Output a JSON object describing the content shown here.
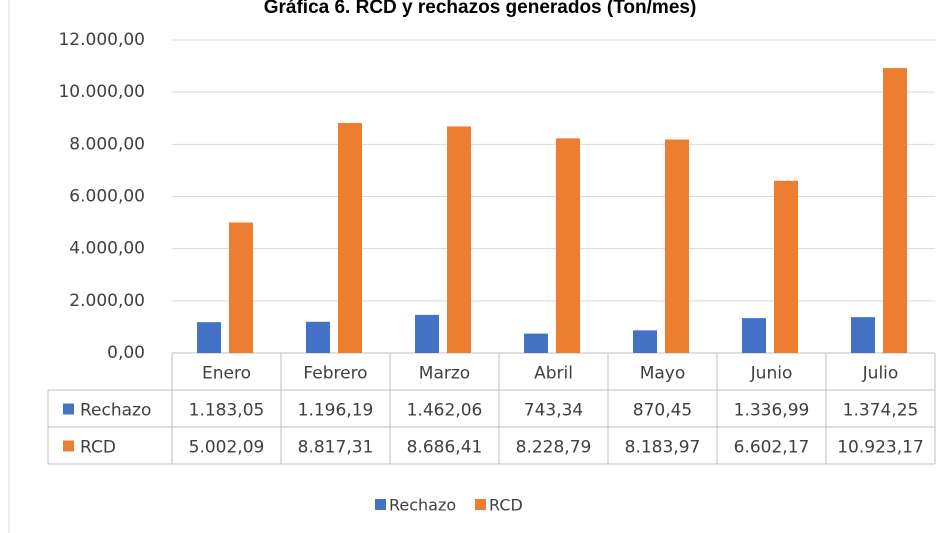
{
  "chart_data": {
    "type": "bar",
    "title": "Gráfica 6. RCD y rechazos generados (Ton/mes)",
    "categories": [
      "Enero",
      "Febrero",
      "Marzo",
      "Abril",
      "Mayo",
      "Junio",
      "Julio"
    ],
    "series": [
      {
        "name": "Rechazo",
        "color": "#4472c4",
        "values": [
          1183.05,
          1196.19,
          1462.06,
          743.34,
          870.45,
          1336.99,
          1374.25
        ],
        "value_labels": [
          "1.183,05",
          "1.196,19",
          "1.462,06",
          "743,34",
          "870,45",
          "1.336,99",
          "1.374,25"
        ]
      },
      {
        "name": "RCD",
        "color": "#ed7d31",
        "values": [
          5002.09,
          8817.31,
          8686.41,
          8228.79,
          8183.97,
          6602.17,
          10923.17
        ],
        "value_labels": [
          "5.002,09",
          "8.817,31",
          "8.686,41",
          "8.228,79",
          "8.183,97",
          "6.602,17",
          "10.923,17"
        ]
      }
    ],
    "ylim": [
      0,
      12000
    ],
    "yticks": [
      {
        "value": 0,
        "label": "0,00"
      },
      {
        "value": 2000,
        "label": "2.000,00"
      },
      {
        "value": 4000,
        "label": "4.000,00"
      },
      {
        "value": 6000,
        "label": "6.000,00"
      },
      {
        "value": 8000,
        "label": "8.000,00"
      },
      {
        "value": 10000,
        "label": "10.000,00"
      },
      {
        "value": 12000,
        "label": "12.000,00"
      }
    ],
    "grid": true,
    "legend": "bottom"
  }
}
